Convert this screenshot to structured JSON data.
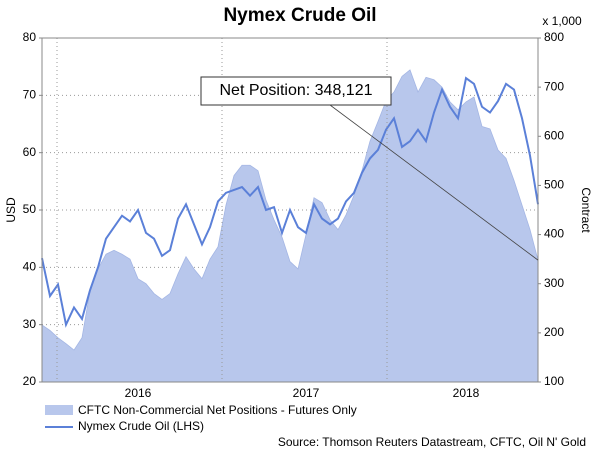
{
  "chart_data": {
    "type": "line",
    "title": "Nymex Crude Oil",
    "y_label": "USD",
    "y2_label": "Contract",
    "y2_unit": "x 1,000",
    "source": "Source: Thomson Reuters Datastream, CFTC, Oil N' Gold",
    "annotation": "Net Position: 348,121",
    "categories": [
      null,
      null,
      null,
      null,
      null,
      null,
      null,
      null,
      null,
      null,
      null,
      null,
      "2016",
      null,
      null,
      null,
      null,
      null,
      null,
      null,
      null,
      null,
      null,
      null,
      null,
      null,
      null,
      null,
      null,
      null,
      null,
      null,
      null,
      "2017",
      null,
      null,
      null,
      null,
      null,
      null,
      null,
      null,
      null,
      null,
      null,
      null,
      null,
      null,
      null,
      null,
      null,
      null,
      null,
      "2018",
      null,
      null,
      null,
      null,
      null,
      null,
      null,
      null,
      null
    ],
    "series": [
      {
        "name": "CFTC Non-Commercial Net Positions - Futures Only",
        "type": "area",
        "axis": "y2",
        "color": "#b8c7ec",
        "values": [
          216,
          205,
          190,
          178,
          165,
          190,
          285,
          330,
          360,
          368,
          360,
          350,
          310,
          300,
          280,
          268,
          280,
          320,
          355,
          330,
          310,
          350,
          375,
          460,
          520,
          541,
          541,
          530,
          470,
          430,
          395,
          345,
          330,
          400,
          475,
          465,
          430,
          410,
          440,
          480,
          530,
          590,
          630,
          672,
          690,
          722,
          735,
          690,
          720,
          715,
          700,
          670,
          654,
          670,
          680,
          620,
          615,
          572,
          555,
          510,
          460,
          410,
          348
        ]
      },
      {
        "name": "Nymex Crude Oil (LHS)",
        "type": "line",
        "axis": "y",
        "color": "#5b80d8",
        "values": [
          41.6,
          35,
          37,
          30,
          33,
          31,
          36,
          40,
          45,
          47,
          49,
          48,
          50,
          46,
          45,
          42,
          43,
          48.5,
          51,
          47.5,
          44,
          47,
          51.5,
          53,
          53.5,
          54,
          52.5,
          54,
          50,
          50.5,
          46,
          50,
          47,
          46,
          51,
          48.5,
          47.5,
          48.5,
          51.5,
          53,
          56.5,
          59,
          60.5,
          64,
          66,
          61,
          62,
          64,
          62,
          67,
          71,
          68,
          66,
          73,
          72,
          68,
          67,
          69,
          72,
          71,
          66,
          59.5,
          51
        ]
      }
    ],
    "ylim": [
      20,
      80
    ],
    "yticks": [
      20,
      30,
      40,
      50,
      60,
      70,
      80
    ],
    "y2lim": [
      100,
      800
    ],
    "y2ticks": [
      100,
      200,
      300,
      400,
      500,
      600,
      700,
      800
    ],
    "grid": true
  }
}
